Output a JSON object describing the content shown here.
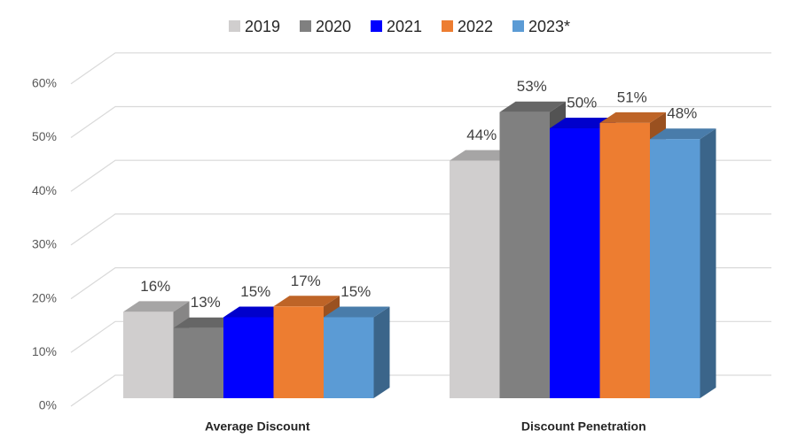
{
  "chart_data": {
    "type": "bar3d",
    "categories": [
      "Average Discount",
      "Discount Penetration"
    ],
    "series": [
      {
        "name": "2019",
        "color": "#d0cece",
        "values": [
          16,
          44
        ],
        "value_labels": [
          "16%",
          "44%"
        ]
      },
      {
        "name": "2020",
        "color": "#808080",
        "values": [
          13,
          53
        ],
        "value_labels": [
          "13%",
          "53%"
        ]
      },
      {
        "name": "2021",
        "color": "#0000ff",
        "values": [
          15,
          50
        ],
        "value_labels": [
          "15%",
          "50%"
        ]
      },
      {
        "name": "2022",
        "color": "#ed7d31",
        "values": [
          17,
          51
        ],
        "value_labels": [
          "17%",
          "51%"
        ]
      },
      {
        "name": "2023*",
        "color": "#5b9bd5",
        "values": [
          15,
          48
        ],
        "value_labels": [
          "15%",
          "48%"
        ]
      }
    ],
    "ylim": [
      0,
      60
    ],
    "yticks": [
      {
        "value": 0,
        "label": "0%"
      },
      {
        "value": 10,
        "label": "10%"
      },
      {
        "value": 20,
        "label": "20%"
      },
      {
        "value": 30,
        "label": "30%"
      },
      {
        "value": 40,
        "label": "40%"
      },
      {
        "value": 50,
        "label": "50%"
      },
      {
        "value": 60,
        "label": "60%"
      }
    ],
    "grid": true,
    "legend": "top"
  }
}
